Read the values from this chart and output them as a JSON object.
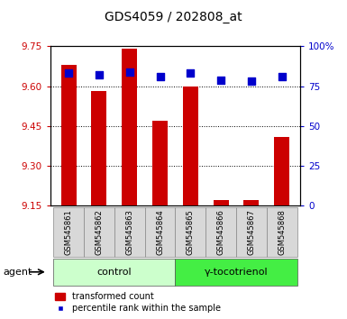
{
  "title": "GDS4059 / 202808_at",
  "samples": [
    "GSM545861",
    "GSM545862",
    "GSM545863",
    "GSM545864",
    "GSM545865",
    "GSM545866",
    "GSM545867",
    "GSM545868"
  ],
  "bar_values": [
    9.68,
    9.58,
    9.74,
    9.47,
    9.6,
    9.17,
    9.17,
    9.41
  ],
  "percentile_values": [
    83,
    82,
    84,
    81,
    83,
    79,
    78,
    81
  ],
  "bar_bottom": 9.15,
  "ylim": [
    9.15,
    9.75
  ],
  "y2lim": [
    0,
    100
  ],
  "yticks": [
    9.15,
    9.3,
    9.45,
    9.6,
    9.75
  ],
  "y2ticks": [
    0,
    25,
    50,
    75,
    100
  ],
  "bar_color": "#cc0000",
  "dot_color": "#0000cc",
  "groups": [
    {
      "label": "control",
      "indices": [
        0,
        1,
        2,
        3
      ],
      "color": "#ccffcc"
    },
    {
      "label": "γ-tocotrienol",
      "indices": [
        4,
        5,
        6,
        7
      ],
      "color": "#44ee44"
    }
  ],
  "agent_label": "agent",
  "legend_bar_label": "transformed count",
  "legend_dot_label": "percentile rank within the sample",
  "tick_label_color_left": "#cc0000",
  "tick_label_color_right": "#0000cc",
  "bar_width": 0.5,
  "dot_size": 35,
  "figsize": [
    3.85,
    3.54
  ],
  "dpi": 100,
  "sample_box_color": "#d8d8d8",
  "sample_box_edge": "#888888"
}
